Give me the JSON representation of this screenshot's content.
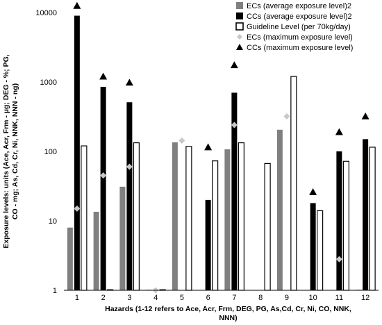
{
  "chart_data": {
    "type": "bar",
    "yscale": "log",
    "ylim": [
      1,
      10000
    ],
    "yticks": [
      "1",
      "10",
      "100",
      "1000",
      "10000"
    ],
    "categories": [
      "1",
      "2",
      "3",
      "4",
      "5",
      "6",
      "7",
      "8",
      "9",
      "10",
      "11",
      "12"
    ],
    "ylabel_lines": [
      "Exposure levels: units (Ace, Acr, Frm - µg; DEG - %; PG,",
      "CO - mg; As, Cd, Cr, Ni, NNK, NNN - ng)"
    ],
    "xlabel_lines": [
      "Hazards (1-12 refers to Ace, Acr, Frm, DEG, PG, As,Cd, Cr, Ni, CO, NNK,",
      "NNN)"
    ],
    "series": [
      {
        "name": "ECs (average exposure level)2",
        "kind": "bar",
        "color": "#808080",
        "values": [
          8,
          13.5,
          31,
          1,
          135,
          null,
          107,
          null,
          205,
          null,
          null,
          1
        ]
      },
      {
        "name": "CCs (average exposure level)2",
        "kind": "bar",
        "color": "#000000",
        "values": [
          9000,
          850,
          510,
          null,
          null,
          20,
          700,
          null,
          null,
          18,
          100,
          150
        ]
      },
      {
        "name": "Guideline Level (per 70kg/day)",
        "kind": "bar-outline",
        "color": "#000000",
        "values": [
          120,
          1,
          133,
          1,
          118,
          73,
          133,
          67,
          1200,
          14,
          72,
          115
        ]
      },
      {
        "name": "ECs (maximum exposure level)",
        "kind": "diamond",
        "color": "#c8c8c8",
        "values": [
          15,
          45,
          60,
          1,
          143,
          null,
          240,
          null,
          320,
          null,
          2.8,
          null
        ]
      },
      {
        "name": "CCs (maximum exposure level)",
        "kind": "triangle",
        "color": "#000000",
        "values": [
          12500,
          1200,
          980,
          null,
          null,
          115,
          1750,
          null,
          null,
          26,
          190,
          320
        ]
      }
    ],
    "grid": false,
    "legend": "top-right"
  }
}
